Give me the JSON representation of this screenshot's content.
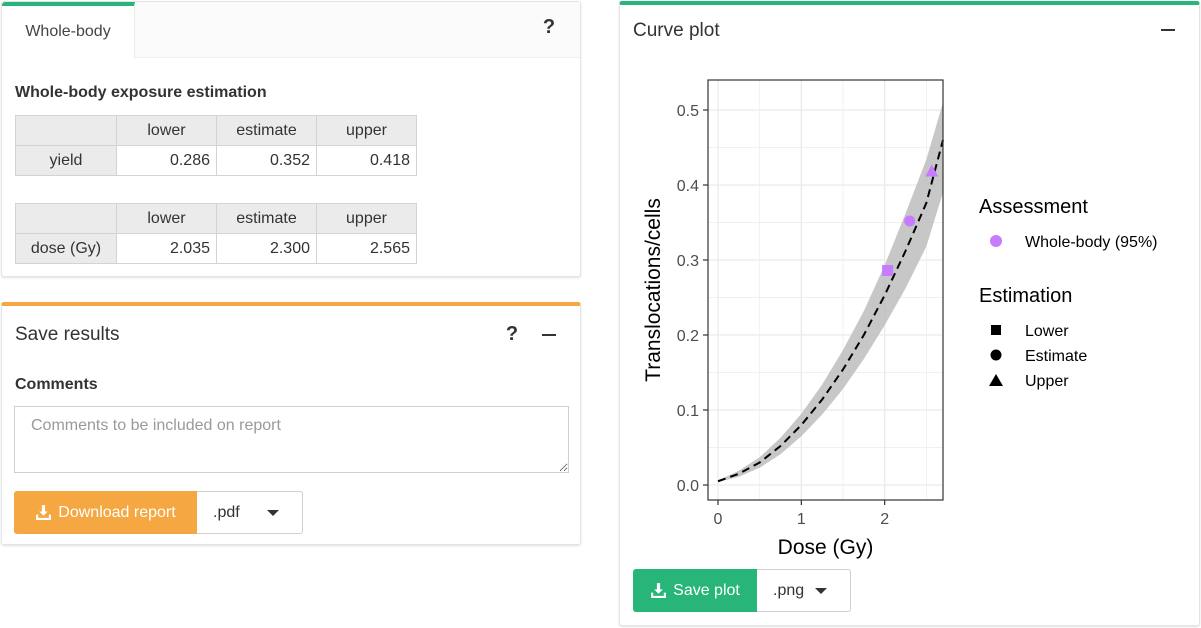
{
  "wholebody": {
    "tab_label": "Whole-body",
    "help_label": "?",
    "section_title": "Whole-body exposure estimation",
    "yield_table": {
      "headers": [
        "",
        "lower",
        "estimate",
        "upper"
      ],
      "row_label": "yield",
      "values": [
        "0.286",
        "0.352",
        "0.418"
      ]
    },
    "dose_table": {
      "headers": [
        "",
        "lower",
        "estimate",
        "upper"
      ],
      "row_label": "dose (Gy)",
      "values": [
        "2.035",
        "2.300",
        "2.565"
      ]
    }
  },
  "save_results": {
    "title": "Save results",
    "help_label": "?",
    "comments_label": "Comments",
    "comments_placeholder": "Comments to be included on report",
    "comments_value": "",
    "download_button": "Download report",
    "format_selected": ".pdf"
  },
  "curve_plot": {
    "title": "Curve plot",
    "save_button": "Save plot",
    "format_selected": ".png"
  },
  "chart_data": {
    "type": "line",
    "xlabel": "Dose (Gy)",
    "ylabel": "Translocations/cells",
    "xlim": [
      -0.12,
      2.7
    ],
    "ylim": [
      -0.02,
      0.54
    ],
    "x_ticks": [
      0,
      1,
      2
    ],
    "y_ticks": [
      0.0,
      0.1,
      0.2,
      0.3,
      0.4,
      0.5
    ],
    "x_tick_labels": [
      "0",
      "1",
      "2"
    ],
    "y_tick_labels": [
      "0.0",
      "0.1",
      "0.2",
      "0.3",
      "0.4",
      "0.5"
    ],
    "grid": true,
    "curve": {
      "line_style": "dashed",
      "x": [
        0.0,
        0.25,
        0.5,
        0.75,
        1.0,
        1.25,
        1.5,
        1.75,
        2.0,
        2.25,
        2.5,
        2.7
      ],
      "y": [
        0.005,
        0.015,
        0.03,
        0.052,
        0.08,
        0.114,
        0.154,
        0.2,
        0.253,
        0.312,
        0.376,
        0.46
      ],
      "lower": [
        0.004,
        0.011,
        0.023,
        0.041,
        0.065,
        0.094,
        0.128,
        0.168,
        0.213,
        0.262,
        0.318,
        0.39
      ],
      "upper": [
        0.006,
        0.019,
        0.037,
        0.063,
        0.095,
        0.134,
        0.18,
        0.232,
        0.293,
        0.362,
        0.434,
        0.51
      ]
    },
    "points": [
      {
        "estimation": "Lower",
        "x": 2.035,
        "y": 0.286
      },
      {
        "estimation": "Estimate",
        "x": 2.3,
        "y": 0.352
      },
      {
        "estimation": "Upper",
        "x": 2.565,
        "y": 0.418
      }
    ],
    "point_color": "#c77cff",
    "legend_placement": "right",
    "legend": {
      "assessment_title": "Assessment",
      "assessment_items": [
        {
          "label": "Whole-body (95%)",
          "color": "#c77cff"
        }
      ],
      "estimation_title": "Estimation",
      "estimation_items": [
        {
          "label": "Lower",
          "shape": "square"
        },
        {
          "label": "Estimate",
          "shape": "circle"
        },
        {
          "label": "Upper",
          "shape": "triangle"
        }
      ]
    }
  },
  "colors": {
    "accent_green": "#28b57a",
    "accent_orange": "#f5a742"
  }
}
